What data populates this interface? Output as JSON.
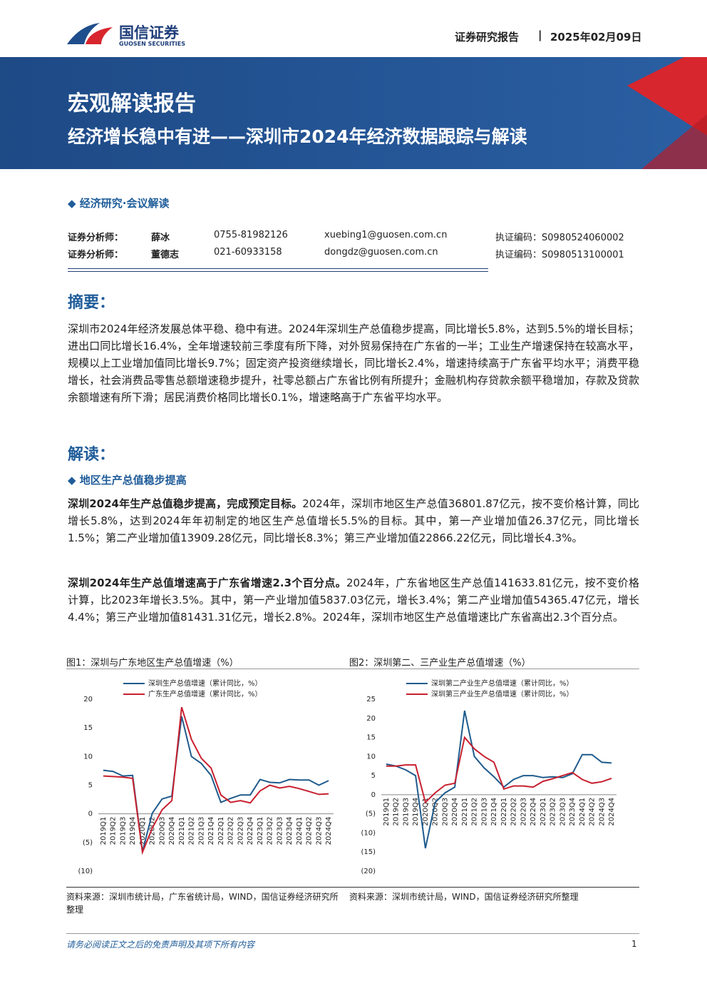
{
  "header": {
    "company_cn": "国信证券",
    "company_en": "GUOSEN SECURITIES",
    "report_type": "证券研究报告",
    "date": "2025年02月09日"
  },
  "banner": {
    "title": "宏观解读报告",
    "subtitle": "经济增长稳中有进——深圳市2024年经济数据跟踪与解读"
  },
  "category": "经济研究·会议解读",
  "analysts": [
    {
      "role": "证券分析师：",
      "name": "薛冰",
      "phone": "0755-81982126",
      "email": "xuebing1@guosen.com.cn",
      "license": "执证编码：S0980524060002"
    },
    {
      "role": "证券分析师：",
      "name": "董德志",
      "phone": "021-60933158",
      "email": "dongdz@guosen.com.cn",
      "license": "执证编码：S0980513100001"
    }
  ],
  "summary": {
    "heading": "摘要：",
    "text": "深圳市2024年经济发展总体平稳、稳中有进。2024年深圳生产总值稳步提高，同比增长5.8%，达到5.5%的增长目标；进出口同比增长16.4%，全年增速较前三季度有所下降，对外贸易保持在广东省的一半；工业生产增速保持在较高水平，规模以上工业增加值同比增长9.7%；固定资产投资继续增长，同比增长2.4%，增速持续高于广东省平均水平；消费平稳增长，社会消费品零售总额增速稳步提升，社零总额占广东省比例有所提升；金融机构存贷款余额平稳增加，存款及贷款余额增速有所下滑；居民消费价格同比增长0.1%，增速略高于广东省平均水平。"
  },
  "interpretation": {
    "heading": "解读：",
    "section": "地区生产总值稳步提高",
    "paragraphs": [
      {
        "lead": "深圳2024年生产总值稳步提高，完成预定目标。",
        "text": "2024年，深圳市地区生产总值36801.87亿元，按不变价格计算，同比增长5.8%，达到2024年年初制定的地区生产总值增长5.5%的目标。其中，第一产业增加值26.37亿元，同比增长1.5%；第二产业增加值13909.28亿元，同比增长8.3%；第三产业增加值22866.22亿元，同比增长4.3%。"
      },
      {
        "lead": "深圳2024年生产总值增速高于广东省增速2.3个百分点。",
        "text": "2024年，广东省地区生产总值141633.81亿元，按不变价格计算，比2023年增长3.5%。其中，第一产业增加值5837.03亿元，增长3.4%；第二产业增加值54365.47亿元，增长4.4%；第三产业增加值81431.31亿元，增长2.8%。2024年，深圳市地区生产总值增速比广东省高出2.3个百分点。"
      }
    ]
  },
  "chart_data": [
    {
      "type": "line",
      "title": "图1：深圳与广东地区生产总值增速（%）",
      "source": "资料来源：深圳市统计局，广东省统计局，WIND，国信证券经济研究所整理",
      "categories": [
        "2019Q1",
        "2019Q2",
        "2019Q3",
        "2019Q4",
        "2020Q1",
        "2020Q2",
        "2020Q3",
        "2020Q4",
        "2021Q1",
        "2021Q2",
        "2021Q3",
        "2021Q4",
        "2022Q1",
        "2022Q2",
        "2022Q3",
        "2022Q4",
        "2023Q1",
        "2023Q2",
        "2023Q3",
        "2023Q4",
        "2024Q1",
        "2024Q2",
        "2024Q3",
        "2024Q4"
      ],
      "series": [
        {
          "name": "深圳生产总值增速（累计同比，%）",
          "color": "#1f5b8c",
          "values": [
            7.6,
            7.4,
            6.6,
            6.7,
            -6.6,
            0.1,
            2.6,
            3.1,
            17.0,
            10.0,
            8.8,
            6.7,
            2.0,
            2.7,
            3.3,
            3.3,
            6.0,
            5.5,
            5.4,
            6.0,
            5.9,
            5.9,
            5.0,
            5.8
          ]
        },
        {
          "name": "广东生产总值增速（累计同比，%）",
          "color": "#c8202f",
          "values": [
            6.6,
            6.5,
            6.4,
            6.2,
            -6.7,
            -2.5,
            0.7,
            2.3,
            18.6,
            13.0,
            9.7,
            8.0,
            3.3,
            2.0,
            2.3,
            1.9,
            4.0,
            5.0,
            4.5,
            4.8,
            4.4,
            3.9,
            3.4,
            3.5
          ]
        }
      ],
      "ylim": [
        -10,
        20
      ],
      "yticks": [
        20,
        15,
        10,
        5,
        0,
        {
          "value": -5,
          "label": "(5)"
        },
        {
          "value": -10,
          "label": "(10)"
        }
      ],
      "grid": false
    },
    {
      "type": "line",
      "title": "图2：深圳第二、三产业生产总值增速（%）",
      "source": "资料来源：深圳市统计局，WIND，国信证券经济研究所整理",
      "categories": [
        "2019Q1",
        "2019Q2",
        "2019Q3",
        "2019Q4",
        "2020Q1",
        "2020Q2",
        "2020Q3",
        "2020Q4",
        "2021Q1",
        "2021Q2",
        "2021Q3",
        "2021Q4",
        "2022Q1",
        "2022Q2",
        "2022Q3",
        "2022Q4",
        "2023Q1",
        "2023Q2",
        "2023Q3",
        "2023Q4",
        "2024Q1",
        "2024Q2",
        "2024Q3",
        "2024Q4"
      ],
      "series": [
        {
          "name": "深圳第二产业生产总值增速（累计同比，%）",
          "color": "#1f5b8c",
          "values": [
            8.0,
            7.5,
            6.5,
            5.0,
            -14.0,
            -2.0,
            0.5,
            2.0,
            22.0,
            10.0,
            7.0,
            4.7,
            2.0,
            4.0,
            5.0,
            5.0,
            4.5,
            4.7,
            4.5,
            5.5,
            10.5,
            10.5,
            8.5,
            8.3
          ]
        },
        {
          "name": "深圳第三产业生产总值增速（累计同比，%）",
          "color": "#c8202f",
          "values": [
            7.5,
            7.5,
            7.8,
            7.8,
            -2.0,
            0.5,
            2.5,
            3.0,
            15.0,
            12.0,
            10.0,
            8.5,
            1.5,
            2.3,
            2.3,
            2.0,
            3.5,
            4.2,
            5.0,
            5.8,
            4.0,
            3.0,
            3.4,
            4.3
          ]
        }
      ],
      "ylim": [
        -20,
        25
      ],
      "yticks": [
        25,
        20,
        15,
        10,
        5,
        0,
        {
          "value": -5,
          "label": "(5)"
        },
        {
          "value": -10,
          "label": "(10)"
        },
        {
          "value": -15,
          "label": "(15)"
        },
        {
          "value": -20,
          "label": "(20)"
        }
      ],
      "grid": false
    }
  ],
  "footer": {
    "disclaimer": "请务必阅读正文之后的免责声明及其项下所有内容",
    "page": "1"
  }
}
